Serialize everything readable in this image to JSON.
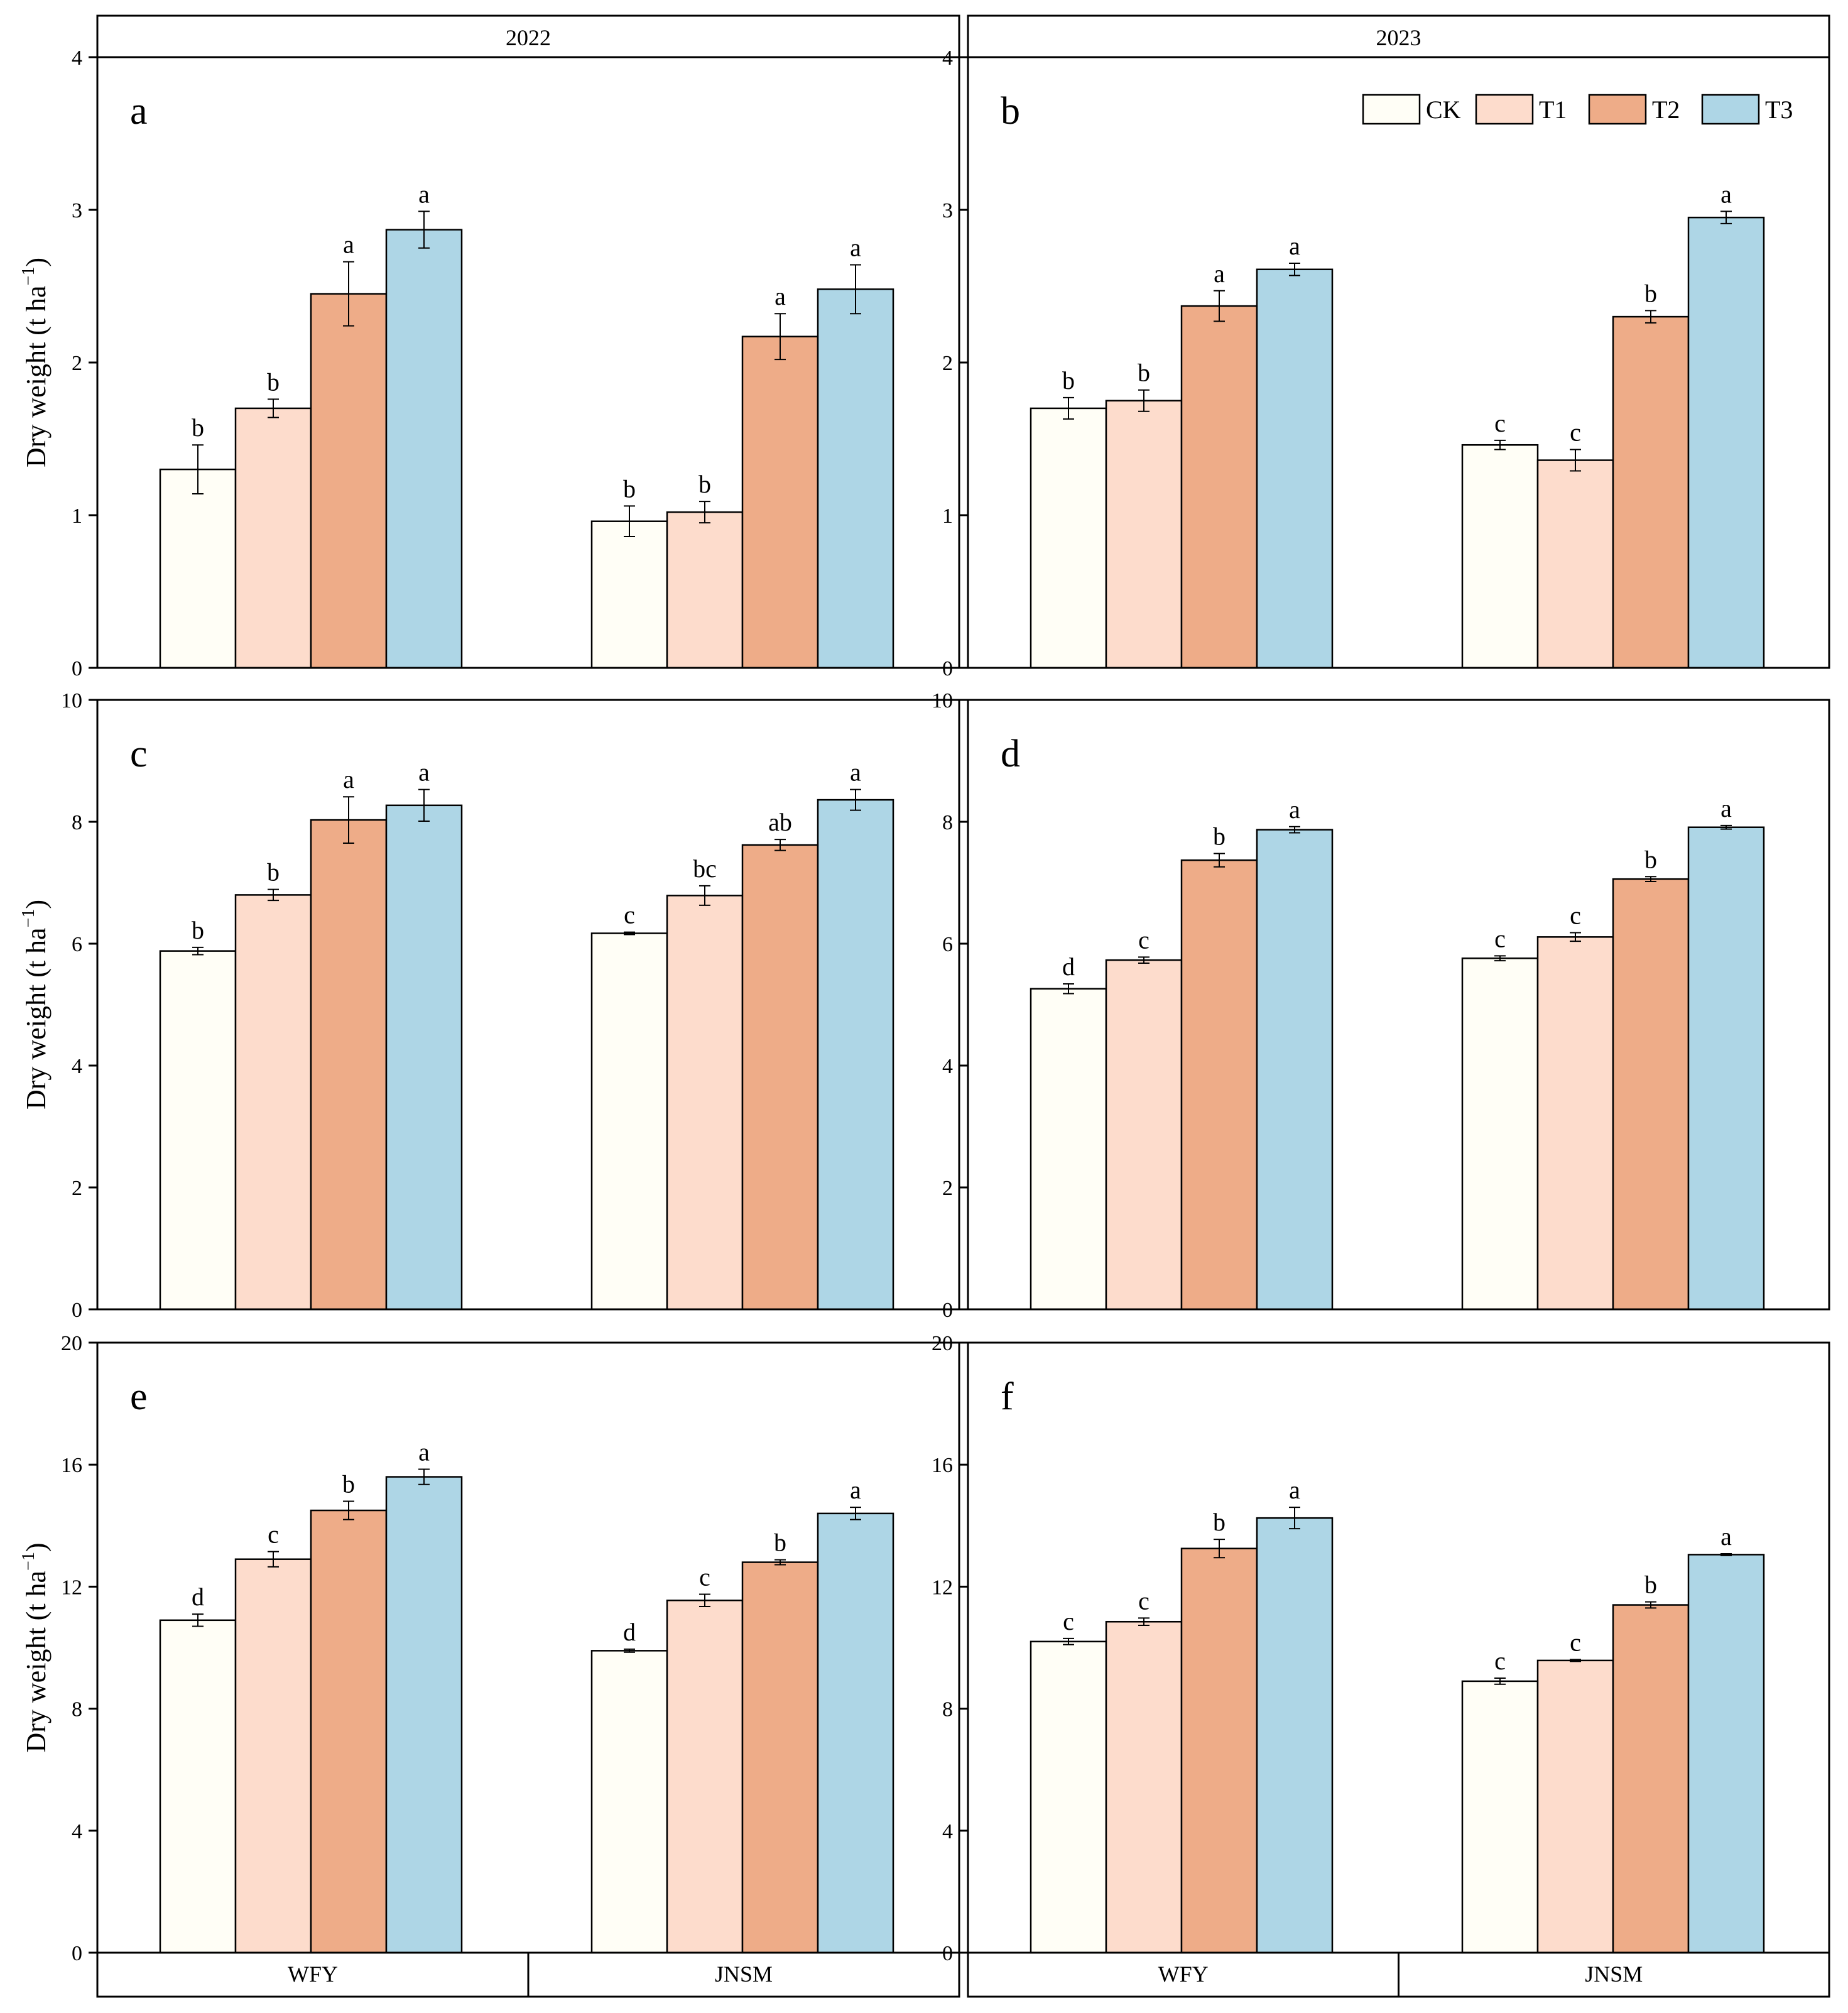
{
  "figure": {
    "year_labels": [
      "2022",
      "2023"
    ],
    "ylabel_text": "Dry weight (t ha",
    "ylabel_sup": "−1",
    "ylabel_close": ")"
  },
  "legend": {
    "items": [
      {
        "name": "CK",
        "color": "#fffef6"
      },
      {
        "name": "T1",
        "color": "#fddccc"
      },
      {
        "name": "T2",
        "color": "#eeac88"
      },
      {
        "name": "T3",
        "color": "#aed6e6"
      }
    ]
  },
  "chart_data": [
    {
      "type": "bar",
      "panel": "a",
      "year": "2022",
      "ylim": [
        0,
        4
      ],
      "yticks": [
        0,
        1,
        2,
        3,
        4
      ],
      "categories": [
        "WFY",
        "JNSM"
      ],
      "ylabel": "Dry weight (t ha−1)",
      "series": [
        {
          "name": "CK",
          "values": [
            1.3,
            0.96
          ],
          "errors": [
            0.16,
            0.1
          ],
          "letters": [
            "b",
            "b"
          ]
        },
        {
          "name": "T1",
          "values": [
            1.7,
            1.02
          ],
          "errors": [
            0.06,
            0.07
          ],
          "letters": [
            "b",
            "b"
          ]
        },
        {
          "name": "T2",
          "values": [
            2.45,
            2.17
          ],
          "errors": [
            0.21,
            0.15
          ],
          "letters": [
            "a",
            "a"
          ]
        },
        {
          "name": "T3",
          "values": [
            2.87,
            2.48
          ],
          "errors": [
            0.12,
            0.16
          ],
          "letters": [
            "a",
            "a"
          ]
        }
      ]
    },
    {
      "type": "bar",
      "panel": "b",
      "year": "2023",
      "ylim": [
        0,
        4
      ],
      "yticks": [
        0,
        1,
        2,
        3,
        4
      ],
      "categories": [
        "WFY",
        "JNSM"
      ],
      "ylabel": "",
      "series": [
        {
          "name": "CK",
          "values": [
            1.7,
            1.46
          ],
          "errors": [
            0.07,
            0.03
          ],
          "letters": [
            "b",
            "c"
          ]
        },
        {
          "name": "T1",
          "values": [
            1.75,
            1.36
          ],
          "errors": [
            0.07,
            0.07
          ],
          "letters": [
            "b",
            "c"
          ]
        },
        {
          "name": "T2",
          "values": [
            2.37,
            2.3
          ],
          "errors": [
            0.1,
            0.04
          ],
          "letters": [
            "a",
            "b"
          ]
        },
        {
          "name": "T3",
          "values": [
            2.61,
            2.95
          ],
          "errors": [
            0.04,
            0.04
          ],
          "letters": [
            "a",
            "a"
          ]
        }
      ]
    },
    {
      "type": "bar",
      "panel": "c",
      "year": "2022",
      "ylim": [
        0,
        10
      ],
      "yticks": [
        0,
        2,
        4,
        6,
        8,
        10
      ],
      "categories": [
        "WFY",
        "JNSM"
      ],
      "ylabel": "Dry weight (t ha−1)",
      "series": [
        {
          "name": "CK",
          "values": [
            5.88,
            6.17
          ],
          "errors": [
            0.06,
            0.02
          ],
          "letters": [
            "b",
            "c"
          ]
        },
        {
          "name": "T1",
          "values": [
            6.8,
            6.79
          ],
          "errors": [
            0.09,
            0.16
          ],
          "letters": [
            "b",
            "bc"
          ]
        },
        {
          "name": "T2",
          "values": [
            8.03,
            7.62
          ],
          "errors": [
            0.38,
            0.09
          ],
          "letters": [
            "a",
            "ab"
          ]
        },
        {
          "name": "T3",
          "values": [
            8.27,
            8.36
          ],
          "errors": [
            0.26,
            0.17
          ],
          "letters": [
            "a",
            "a"
          ]
        }
      ]
    },
    {
      "type": "bar",
      "panel": "d",
      "year": "2023",
      "ylim": [
        0,
        10
      ],
      "yticks": [
        0,
        2,
        4,
        6,
        8,
        10
      ],
      "categories": [
        "WFY",
        "JNSM"
      ],
      "ylabel": "",
      "series": [
        {
          "name": "CK",
          "values": [
            5.26,
            5.76
          ],
          "errors": [
            0.08,
            0.04
          ],
          "letters": [
            "d",
            "c"
          ]
        },
        {
          "name": "T1",
          "values": [
            5.73,
            6.11
          ],
          "errors": [
            0.05,
            0.07
          ],
          "letters": [
            "c",
            "c"
          ]
        },
        {
          "name": "T2",
          "values": [
            7.37,
            7.06
          ],
          "errors": [
            0.11,
            0.04
          ],
          "letters": [
            "b",
            "b"
          ]
        },
        {
          "name": "T3",
          "values": [
            7.87,
            7.91
          ],
          "errors": [
            0.05,
            0.03
          ],
          "letters": [
            "a",
            "a"
          ]
        }
      ]
    },
    {
      "type": "bar",
      "panel": "e",
      "year": "2022",
      "ylim": [
        0,
        20
      ],
      "yticks": [
        0,
        4,
        8,
        12,
        16,
        20
      ],
      "categories": [
        "WFY",
        "JNSM"
      ],
      "ylabel": "Dry weight (t ha−1)",
      "series": [
        {
          "name": "CK",
          "values": [
            10.9,
            9.9
          ],
          "errors": [
            0.2,
            0.05
          ],
          "letters": [
            "d",
            "d"
          ]
        },
        {
          "name": "T1",
          "values": [
            12.9,
            11.55
          ],
          "errors": [
            0.25,
            0.2
          ],
          "letters": [
            "c",
            "c"
          ]
        },
        {
          "name": "T2",
          "values": [
            14.5,
            12.8
          ],
          "errors": [
            0.3,
            0.08
          ],
          "letters": [
            "b",
            "b"
          ]
        },
        {
          "name": "T3",
          "values": [
            15.6,
            14.4
          ],
          "errors": [
            0.25,
            0.2
          ],
          "letters": [
            "a",
            "a"
          ]
        }
      ]
    },
    {
      "type": "bar",
      "panel": "f",
      "year": "2023",
      "ylim": [
        0,
        20
      ],
      "yticks": [
        0,
        4,
        8,
        12,
        16,
        20
      ],
      "categories": [
        "WFY",
        "JNSM"
      ],
      "ylabel": "",
      "series": [
        {
          "name": "CK",
          "values": [
            10.2,
            8.9
          ],
          "errors": [
            0.1,
            0.1
          ],
          "letters": [
            "c",
            "c"
          ]
        },
        {
          "name": "T1",
          "values": [
            10.85,
            9.58
          ],
          "errors": [
            0.12,
            0.03
          ],
          "letters": [
            "c",
            "c"
          ]
        },
        {
          "name": "T2",
          "values": [
            13.25,
            11.4
          ],
          "errors": [
            0.3,
            0.1
          ],
          "letters": [
            "b",
            "b"
          ]
        },
        {
          "name": "T3",
          "values": [
            14.25,
            13.05
          ],
          "errors": [
            0.35,
            0.03
          ],
          "letters": [
            "a",
            "a"
          ]
        }
      ]
    }
  ]
}
